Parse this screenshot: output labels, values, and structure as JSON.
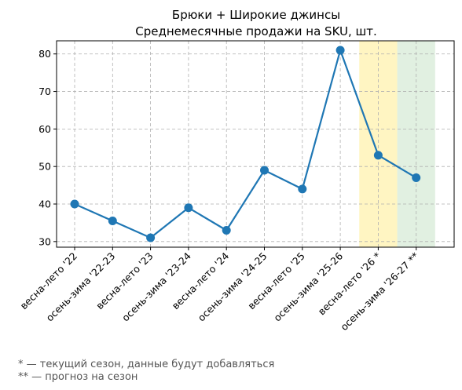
{
  "chart_data": {
    "type": "line",
    "title_lines": [
      "Брюки + Широкие джинсы",
      "Среднемесячные продажи на SKU, шт."
    ],
    "xlabel": "",
    "ylabel": "",
    "categories": [
      "весна-лето '22",
      "осень-зима '22-23",
      "весна-лето '23",
      "осень-зима '23-24",
      "весна-лето '24",
      "осень-зима '24-25",
      "весна-лето '25",
      "осень-зима '25-26",
      "весна-лето '26 *",
      "осень-зима '26-27 **"
    ],
    "series": [
      {
        "values": [
          40,
          35.5,
          31,
          39,
          33,
          49,
          44,
          81,
          53,
          47
        ],
        "color": "#1f77b4"
      }
    ],
    "ylim": [
      28.5,
      83.5
    ],
    "yticks": [
      30,
      40,
      50,
      60,
      70,
      80
    ],
    "grid": true,
    "highlight_bands": [
      {
        "category_index": 8,
        "color": "#fff2b3"
      },
      {
        "category_index": 9,
        "color": "#d9ecd9"
      }
    ]
  },
  "notes": [
    "* — текущий сезон, данные будут добавляться",
    "** — прогноз на сезон"
  ]
}
